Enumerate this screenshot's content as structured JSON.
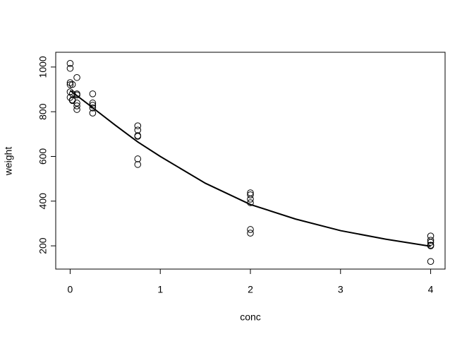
{
  "chart_data": {
    "type": "scatter",
    "xlabel": "conc",
    "ylabel": "weight",
    "xlim": [
      -0.16,
      4.16
    ],
    "ylim": [
      96,
      1066
    ],
    "xticks": [
      0,
      1,
      2,
      3,
      4
    ],
    "yticks": [
      200,
      400,
      600,
      800,
      1000
    ],
    "series": [
      {
        "type": "scatter",
        "color": "#000000",
        "x": [
          0,
          0,
          0,
          0,
          0,
          0,
          0.025,
          0.025,
          0.025,
          0.025,
          0.075,
          0.075,
          0.075,
          0.075,
          0.075,
          0.075,
          0.25,
          0.25,
          0.25,
          0.25,
          0.25,
          0.75,
          0.75,
          0.75,
          0.75,
          0.75,
          0.75,
          2,
          2,
          2,
          2,
          2,
          2,
          4,
          4,
          4,
          4,
          4,
          4
        ],
        "values": [
          1016,
          994,
          930,
          921,
          889,
          864,
          922,
          880,
          853,
          850,
          953,
          880,
          875,
          839,
          826,
          810,
          880,
          839,
          829,
          817,
          794,
          737,
          718,
          693,
          690,
          589,
          564,
          437,
          428,
          409,
          393,
          273,
          257,
          244,
          225,
          216,
          203,
          200,
          130
        ]
      },
      {
        "type": "line",
        "color": "#000000",
        "x": [
          0,
          0.25,
          0.5,
          0.75,
          1,
          1.5,
          2,
          2.5,
          3,
          3.5,
          4
        ],
        "values": [
          895,
          818,
          740,
          665,
          600,
          480,
          385,
          320,
          268,
          230,
          198
        ]
      }
    ]
  }
}
